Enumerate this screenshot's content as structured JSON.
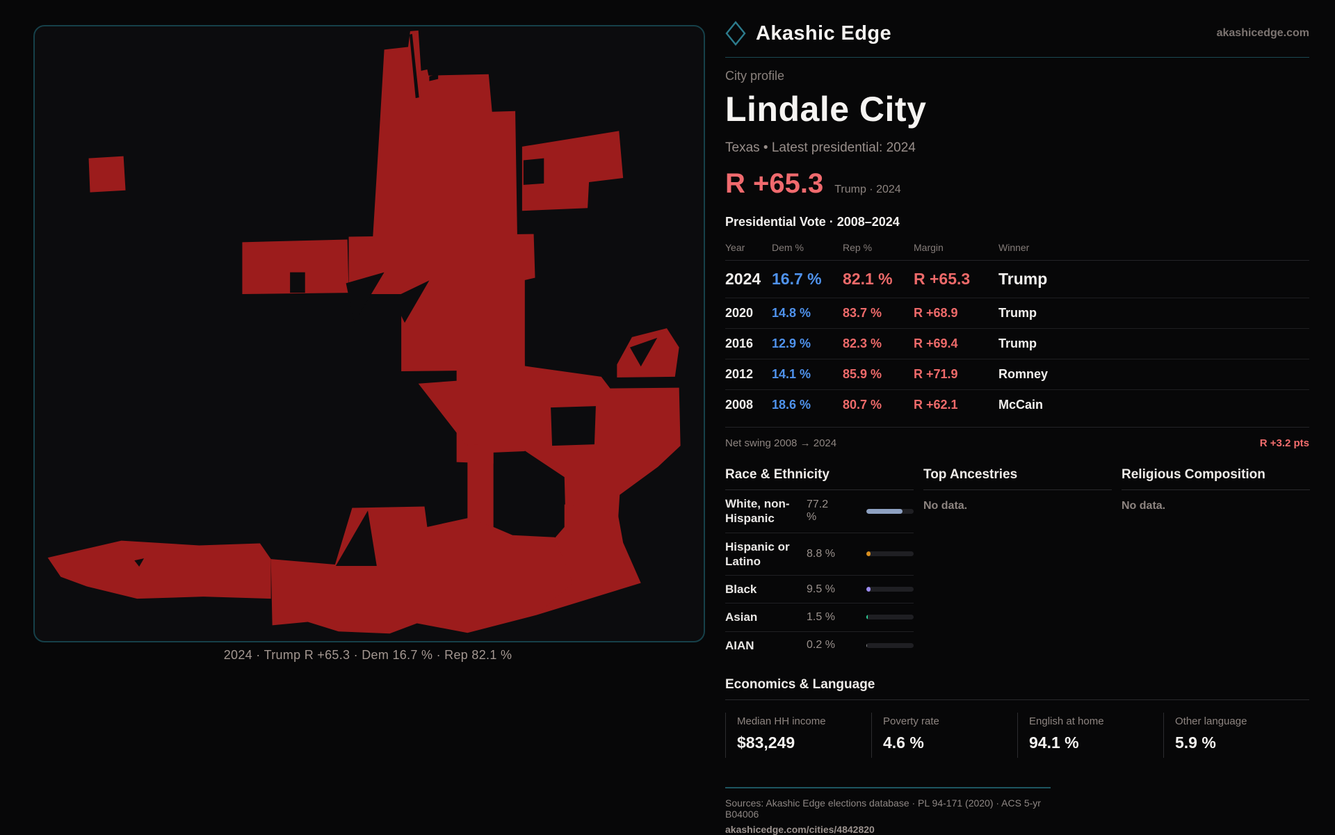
{
  "brand": {
    "name": "Akashic Edge",
    "domain": "akashicedge.com"
  },
  "profile": {
    "kicker": "City profile",
    "title": "Lindale City",
    "meta": "Texas • Latest presidential: 2024",
    "headline_margin": "R +65.3",
    "headline_context": "Trump · 2024"
  },
  "vote_table": {
    "title": "Presidential Vote · 2008–2024",
    "columns": [
      "Year",
      "Dem %",
      "Rep %",
      "Margin",
      "Winner"
    ],
    "rows": [
      {
        "year": "2024",
        "dem": "16.7 %",
        "rep": "82.1 %",
        "margin": "R +65.3",
        "winner": "Trump"
      },
      {
        "year": "2020",
        "dem": "14.8 %",
        "rep": "83.7 %",
        "margin": "R +68.9",
        "winner": "Trump"
      },
      {
        "year": "2016",
        "dem": "12.9 %",
        "rep": "82.3 %",
        "margin": "R +69.4",
        "winner": "Trump"
      },
      {
        "year": "2012",
        "dem": "14.1 %",
        "rep": "85.9 %",
        "margin": "R +71.9",
        "winner": "Romney"
      },
      {
        "year": "2008",
        "dem": "18.6 %",
        "rep": "80.7 %",
        "margin": "R +62.1",
        "winner": "McCain"
      }
    ],
    "net_swing_label": "Net swing 2008 → 2024",
    "net_swing_value": "R +3.2 pts"
  },
  "race": {
    "title": "Race & Ethnicity",
    "rows": [
      {
        "label": "White, non-Hispanic",
        "value": "77.2 %",
        "pct": 77.2,
        "color": "#8ea1c2"
      },
      {
        "label": "Hispanic or Latino",
        "value": "8.8 %",
        "pct": 8.8,
        "color": "#d98f1f"
      },
      {
        "label": "Black",
        "value": "9.5 %",
        "pct": 9.5,
        "color": "#9b8bf0"
      },
      {
        "label": "Asian",
        "value": "1.5 %",
        "pct": 1.5,
        "color": "#2ed49b"
      },
      {
        "label": "AIAN",
        "value": "0.2 %",
        "pct": 0.2,
        "color": "#8a8a8a"
      }
    ]
  },
  "ancestries": {
    "title": "Top Ancestries",
    "empty": "No data."
  },
  "religion": {
    "title": "Religious Composition",
    "empty": "No data."
  },
  "economics": {
    "title": "Economics & Language",
    "stats": [
      {
        "label": "Median HH income",
        "value": "$83,249"
      },
      {
        "label": "Poverty rate",
        "value": "4.6 %"
      },
      {
        "label": "English at home",
        "value": "94.1 %"
      },
      {
        "label": "Other language",
        "value": "5.9 %"
      }
    ]
  },
  "map": {
    "caption": "2024 · Trump R +65.3 · Dem 16.7 % · Rep 82.1 %",
    "fill": "#9c1c1c",
    "hole_fill": "#0c0c0e",
    "shapes": [
      "79,193 130,190 133,240 81,243",
      "512,34 547,30 550,7 562,6 566,65 575,63 577,72 665,70 670,125 704,124 707,312 495,314 506,136",
      "714,176 856,153 862,222 812,228 810,266 714,270",
      "304,316 458,312 460,390 304,392",
      "460,308 731,304 733,368 716,372 718,503 537,505 537,392 460,392",
      "618,372 718,368 718,622 672,624 672,640 618,638",
      "562,523 700,513 700,612 632,613",
      "634,612 672,614 672,733 634,733",
      "716,497 830,513 843,530 944,529 946,614 913,645 857,686 854,733 778,733 776,660 716,620",
      "776,700 854,712 862,756 888,815 735,862 700,820 776,733",
      "853,495 875,455 926,442 944,470 938,513 853,514",
      "346,780 440,788 465,705 571,703 575,733 634,720 672,733 700,745 762,748 788,815 735,862 634,888 560,874 520,889 445,886 400,872 348,877",
      "19,778 127,753 241,760 330,757 346,780 346,838 247,835 150,838 76,820 38,806"
    ],
    "holes": [
      "441,790 488,709 501,790",
      "456,376 512,360 468,434",
      "524,398 578,372 542,434",
      "374,360 396,360 396,390 374,390",
      "146,782 160,779 153,791",
      "716,196 746,193 746,230 716,232",
      "872,470 912,456 888,498",
      "756,558 822,556 820,612 758,614",
      "549,12 553,11 563,104 558,105",
      "578,73 591,70 591,77 578,80"
    ]
  },
  "footer": {
    "sources": "Sources: Akashic Edge elections database · PL 94-171 (2020) · ACS 5-yr B04006",
    "link": "akashicedge.com/cities/4842820"
  },
  "colors": {
    "accent_red": "#ef6b6b",
    "accent_blue": "#4f92ec",
    "teal_line": "#1b4953"
  }
}
